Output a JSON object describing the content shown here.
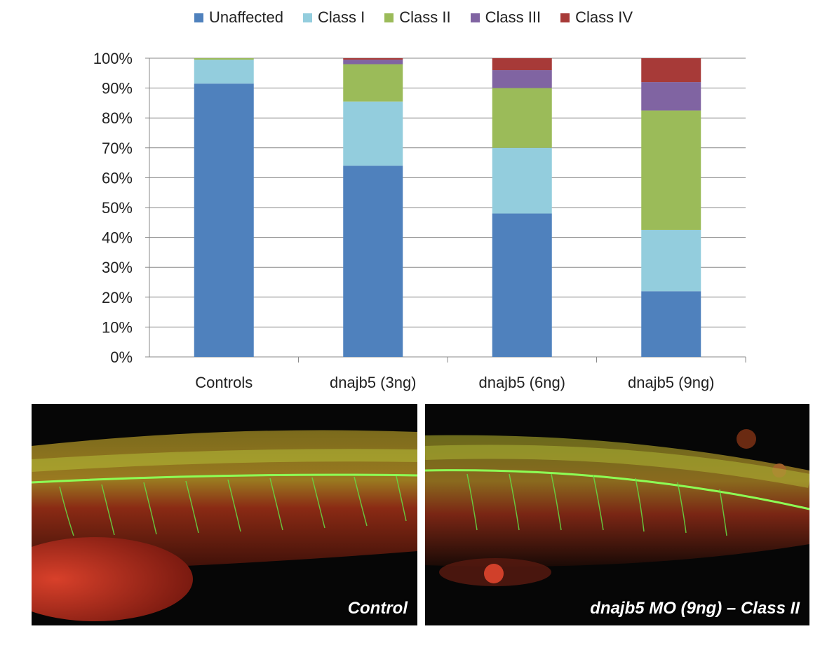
{
  "chart_data": {
    "type": "bar",
    "stacked": true,
    "categories": [
      "Controls",
      "dnajb5 (3ng)",
      "dnajb5 (6ng)",
      "dnajb5 (9ng)"
    ],
    "series": [
      {
        "name": "Unaffected",
        "color": "#4F81BD",
        "values": [
          91.5,
          64,
          48,
          22
        ]
      },
      {
        "name": "Class I",
        "color": "#93CDDD",
        "values": [
          8,
          21.5,
          22,
          20.5
        ]
      },
      {
        "name": "Class II",
        "color": "#9BBB59",
        "values": [
          0.5,
          12.5,
          20,
          40
        ]
      },
      {
        "name": "Class III",
        "color": "#8064A2",
        "values": [
          0,
          1.5,
          6,
          9.5
        ]
      },
      {
        "name": "Class IV",
        "color": "#A73A38",
        "values": [
          0,
          0.5,
          4,
          8
        ]
      }
    ],
    "ylim": [
      0,
      100
    ],
    "yticks": [
      "0%",
      "10%",
      "20%",
      "30%",
      "40%",
      "50%",
      "60%",
      "70%",
      "80%",
      "90%",
      "100%"
    ],
    "grid": true,
    "legend_position": "top"
  },
  "panels": {
    "left_label": "Control",
    "right_label": "dnajb5 MO (9ng) – Class II"
  }
}
